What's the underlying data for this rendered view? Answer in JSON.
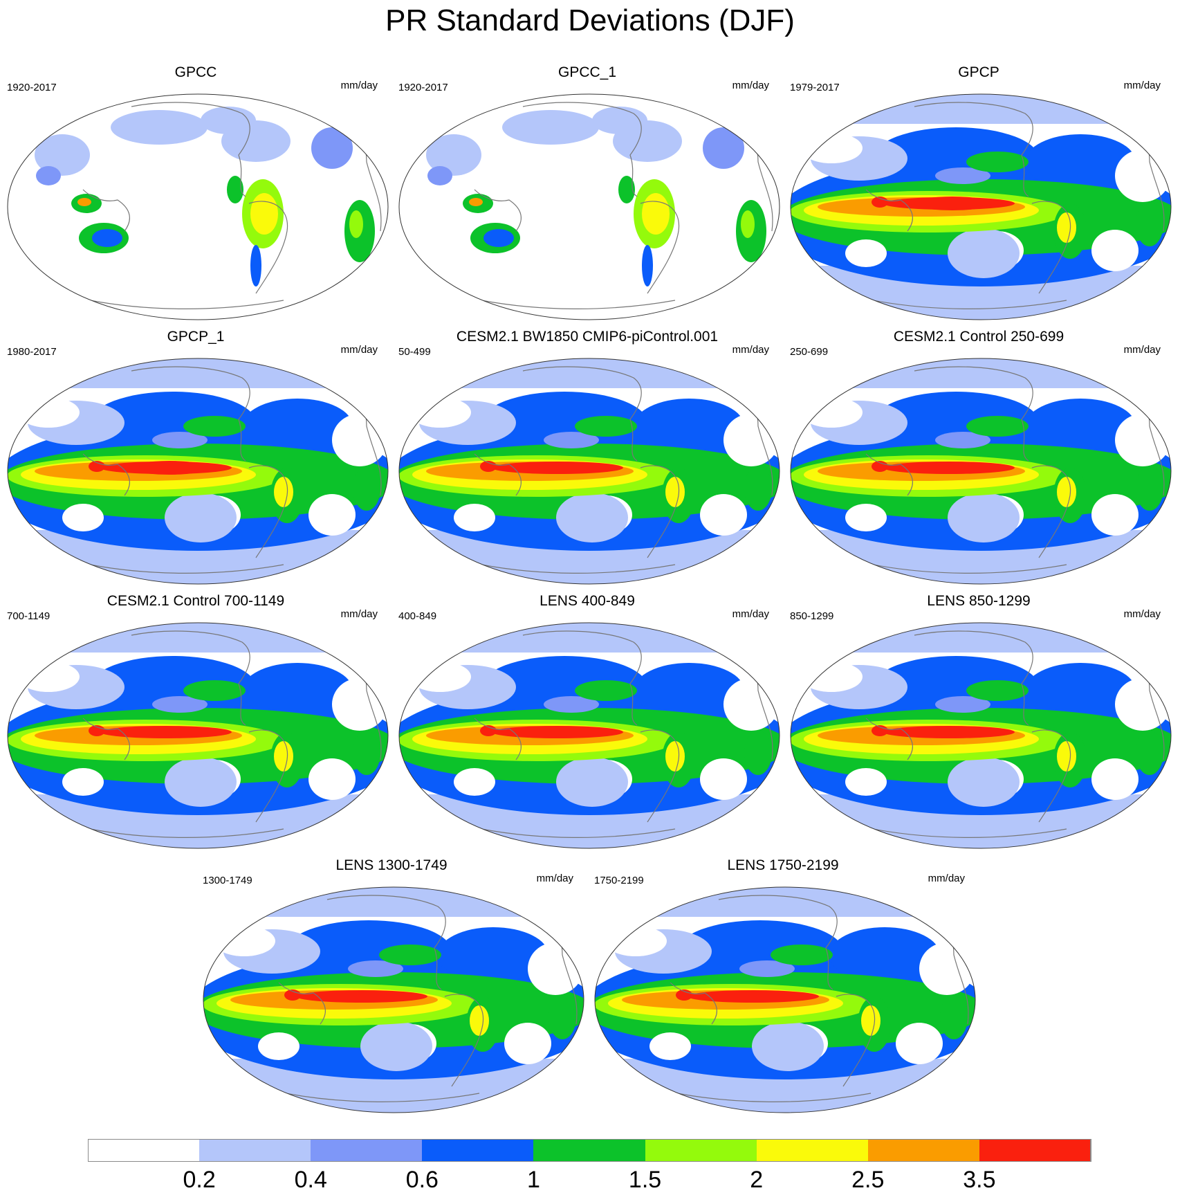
{
  "title": "PR Standard Deviations (DJF)",
  "units": "mm/day",
  "colorbar": {
    "colors": [
      "#ffffff",
      "#b4c6fa",
      "#7e97f8",
      "#0a5cfa",
      "#0cc22a",
      "#94fa0c",
      "#fafa0a",
      "#fa9c00",
      "#fa200e"
    ],
    "labels": [
      "0.2",
      "0.4",
      "0.6",
      "1",
      "1.5",
      "2",
      "2.5",
      "3.5"
    ]
  },
  "panels": [
    {
      "title": "GPCC",
      "period": "1920-2017",
      "style": "land"
    },
    {
      "title": "GPCC_1",
      "period": "1920-2017",
      "style": "land"
    },
    {
      "title": "GPCP",
      "period": "1979-2017",
      "style": "obs",
      "peak": "moderate"
    },
    {
      "title": "GPCP_1",
      "period": "1980-2017",
      "style": "obs",
      "peak": "moderate"
    },
    {
      "title": "CESM2.1 BW1850 CMIP6-piControl.001",
      "period": "50-499",
      "style": "model",
      "peak": "strong"
    },
    {
      "title": "CESM2.1 Control 250-699",
      "period": "250-699",
      "style": "model",
      "peak": "strong"
    },
    {
      "title": "CESM2.1 Control 700-1149",
      "period": "700-1149",
      "style": "model",
      "peak": "strong"
    },
    {
      "title": "LENS 400-849",
      "period": "400-849",
      "style": "model",
      "peak": "narrow"
    },
    {
      "title": "LENS 850-1299",
      "period": "850-1299",
      "style": "model",
      "peak": "narrow"
    },
    {
      "title": "LENS 1300-1749",
      "period": "1300-1749",
      "style": "model",
      "peak": "narrow"
    },
    {
      "title": "LENS 1750-2199",
      "period": "1750-2199",
      "style": "model",
      "peak": "narrow"
    }
  ]
}
